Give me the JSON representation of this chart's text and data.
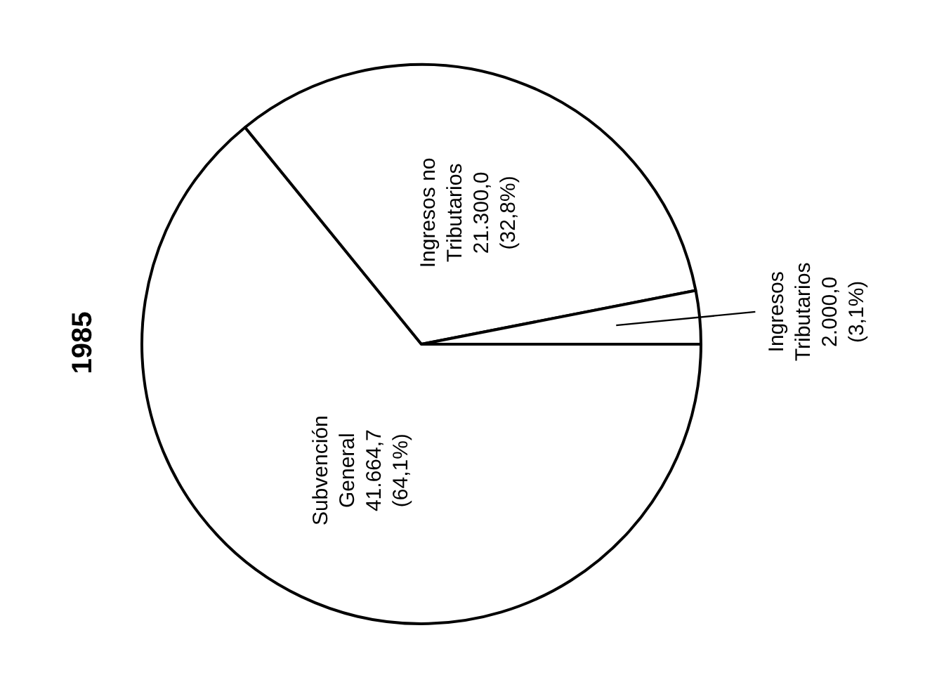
{
  "chart_data": {
    "type": "pie",
    "title": "1985",
    "categories": [
      "Subvención General",
      "Ingresos no Tributarios",
      "Ingresos Tributarios"
    ],
    "values": [
      41664.7,
      21300.0,
      2000.0
    ],
    "colors": [
      "#ffffff",
      "#ffffff",
      "#ffffff"
    ],
    "value_labels": [
      "41.664,7 (64,1%)",
      "21.300,0 (32,8%)",
      "2.000,0 (3,1%)"
    ]
  }
}
